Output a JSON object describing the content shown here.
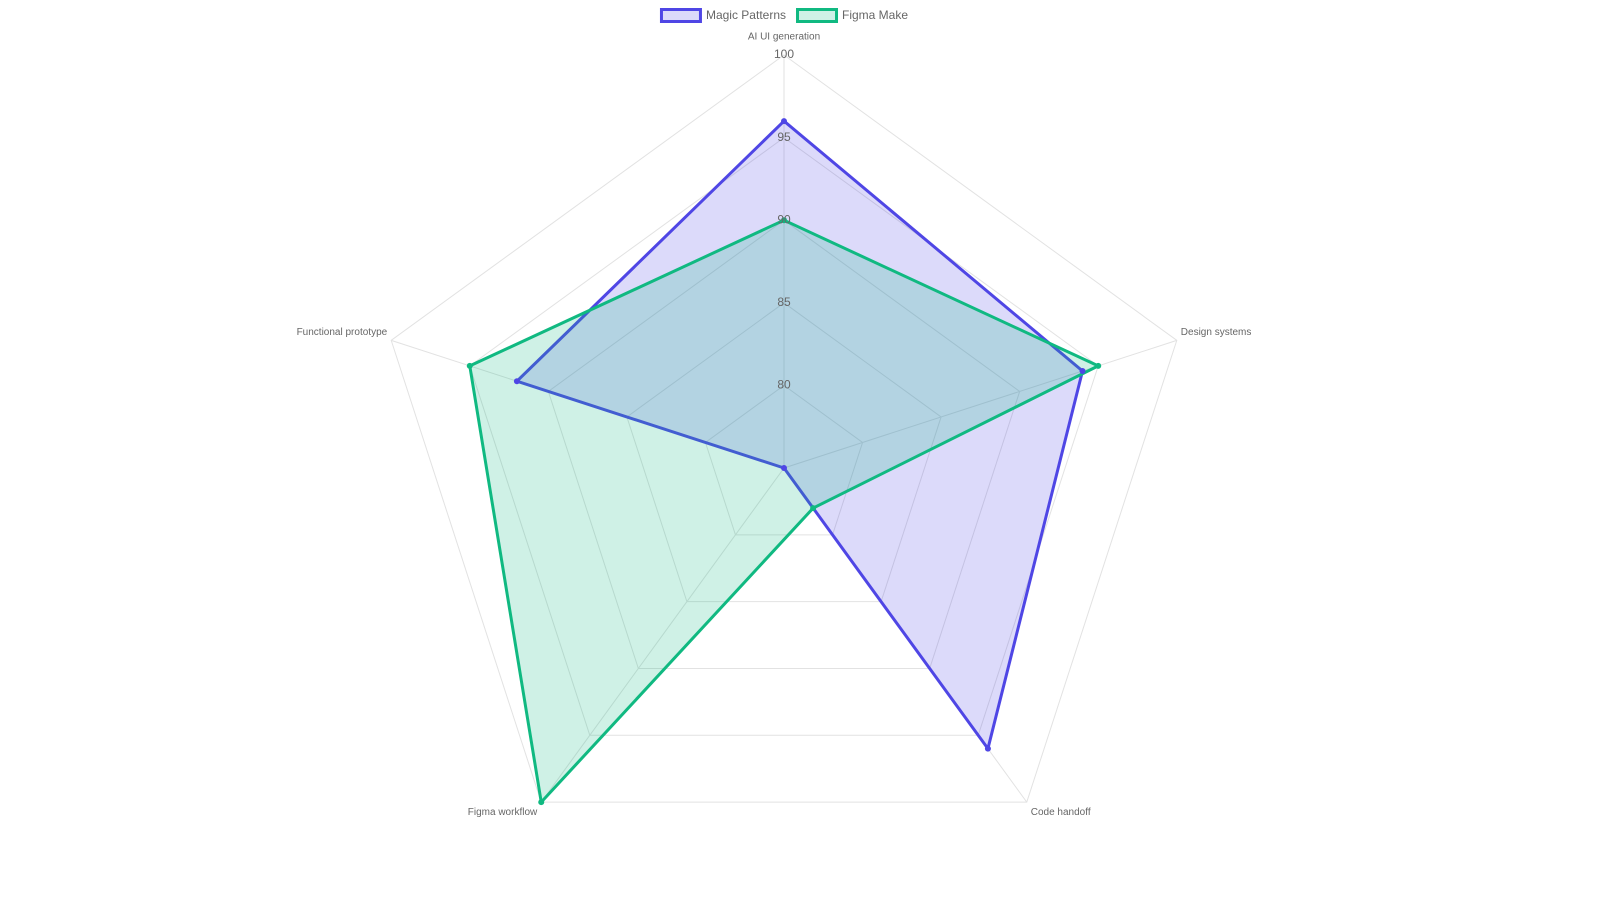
{
  "chart_data": {
    "type": "radar",
    "categories": [
      "AI UI generation",
      "Design systems",
      "Code handoff",
      "Figma workflow",
      "Functional prototype"
    ],
    "series": [
      {
        "name": "Magic Patterns",
        "color": "#4f46e5",
        "values": [
          96,
          94,
          96,
          75,
          92
        ]
      },
      {
        "name": "Figma Make",
        "color": "#10b981",
        "values": [
          90,
          95,
          78,
          100,
          95
        ]
      }
    ],
    "rlim": [
      75,
      100
    ],
    "rticks": [
      80,
      85,
      90,
      95,
      100
    ],
    "grid": true,
    "legend": "top"
  }
}
